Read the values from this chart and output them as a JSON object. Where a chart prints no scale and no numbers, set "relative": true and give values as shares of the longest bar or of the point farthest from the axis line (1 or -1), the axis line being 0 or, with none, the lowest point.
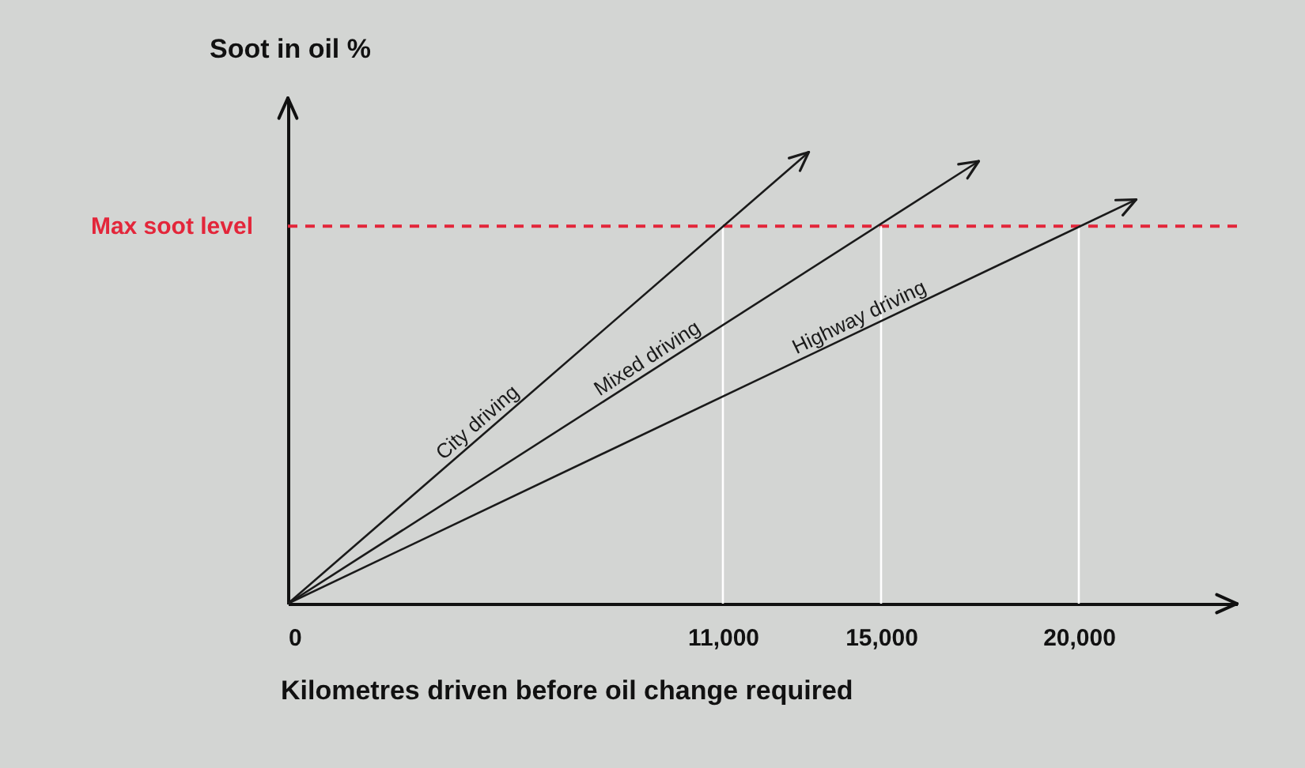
{
  "chart_data": {
    "type": "line",
    "relative": true,
    "xlabel": "Kilometres driven before oil change required",
    "ylabel": "Soot in oil %",
    "xlim": [
      0,
      24000
    ],
    "xticks": [
      0,
      {
        "value": 11000,
        "label": "11,000"
      },
      {
        "value": 15000,
        "label": "15,000"
      },
      {
        "value": 20000,
        "label": "20,000"
      }
    ],
    "series": [
      {
        "name": "City driving",
        "color": "#1a1a1a",
        "x": [
          0,
          13170
        ],
        "values": [
          0,
          1
        ]
      },
      {
        "name": "Mixed driving",
        "color": "#1a1a1a",
        "x": [
          0,
          17470
        ],
        "values": [
          0,
          0.98
        ]
      },
      {
        "name": "Highway driving",
        "color": "#1a1a1a",
        "x": [
          0,
          21450
        ],
        "values": [
          0,
          0.895
        ]
      }
    ],
    "ref_lines": [
      {
        "axis": "y",
        "value": 0.836,
        "label": "Max soot level",
        "color": "#e3263a",
        "line_style": "dashed"
      },
      {
        "axis": "x",
        "value": 11000,
        "color": "#ffffff"
      },
      {
        "axis": "x",
        "value": 15000,
        "color": "#ffffff"
      },
      {
        "axis": "x",
        "value": 20000,
        "color": "#ffffff"
      }
    ],
    "grid": false,
    "marker": "none",
    "line_style": "solid"
  }
}
